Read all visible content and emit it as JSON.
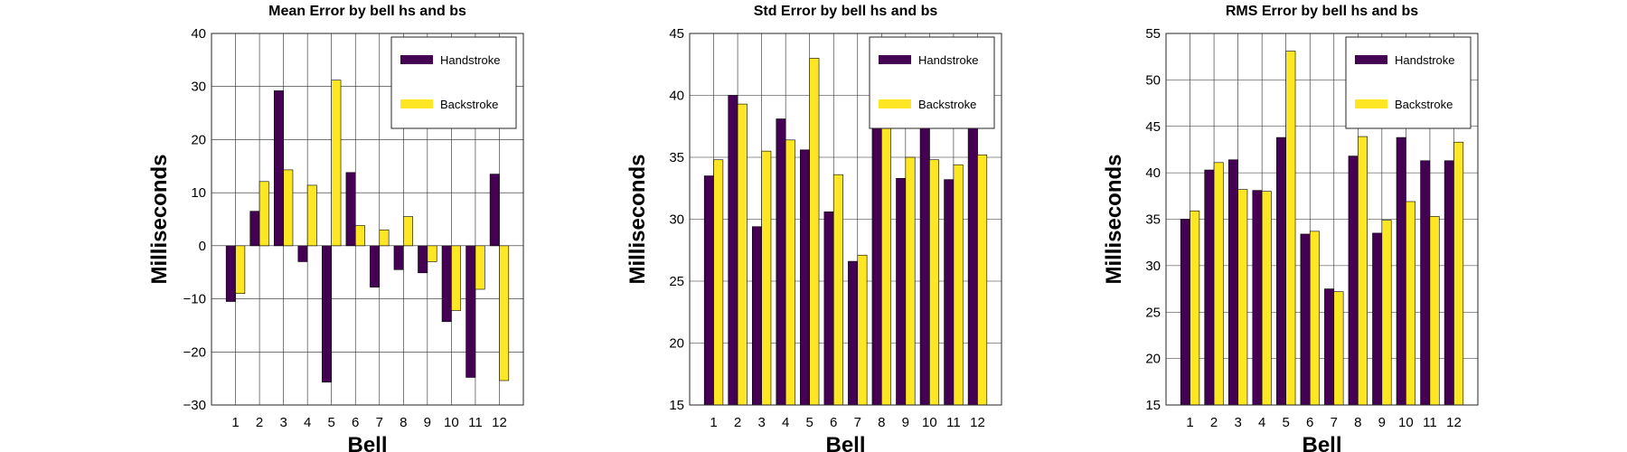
{
  "chart_data": [
    {
      "type": "bar",
      "title": "Mean Error by bell hs and bs",
      "xlabel": "Bell",
      "ylabel": "Milliseconds",
      "categories": [
        "1",
        "2",
        "3",
        "4",
        "5",
        "6",
        "7",
        "8",
        "9",
        "10",
        "11",
        "12"
      ],
      "ylim": [
        -30,
        40
      ],
      "yticks": [
        -30,
        -20,
        -10,
        0,
        10,
        20,
        30,
        40
      ],
      "ytick_labels": [
        "−30",
        "−20",
        "−10",
        "0",
        "10",
        "20",
        "30",
        "40"
      ],
      "grid": true,
      "legend_position": "top-right",
      "series": [
        {
          "name": "Handstroke",
          "color": "#440154",
          "values": [
            -10.5,
            6.5,
            29.2,
            -3.0,
            -25.7,
            13.8,
            -7.8,
            -4.5,
            -5.1,
            -14.3,
            -24.8,
            13.5
          ]
        },
        {
          "name": "Backstroke",
          "color": "#fde725",
          "values": [
            -9.0,
            12.1,
            14.3,
            11.4,
            31.2,
            3.8,
            3.0,
            5.5,
            -3.0,
            -12.2,
            -8.2,
            -25.4
          ]
        }
      ]
    },
    {
      "type": "bar",
      "title": "Std Error by bell hs and bs",
      "xlabel": "Bell",
      "ylabel": "Milliseconds",
      "categories": [
        "1",
        "2",
        "3",
        "4",
        "5",
        "6",
        "7",
        "8",
        "9",
        "10",
        "11",
        "12"
      ],
      "ylim": [
        15,
        45
      ],
      "yticks": [
        15,
        20,
        25,
        30,
        35,
        40,
        45
      ],
      "ytick_labels": [
        "15",
        "20",
        "25",
        "30",
        "35",
        "40",
        "45"
      ],
      "grid": true,
      "legend_position": "top-right",
      "series": [
        {
          "name": "Handstroke",
          "color": "#440154",
          "values": [
            33.5,
            40.0,
            29.4,
            38.1,
            35.6,
            30.6,
            26.6,
            41.7,
            33.3,
            41.6,
            33.2,
            39.2
          ]
        },
        {
          "name": "Backstroke",
          "color": "#fde725",
          "values": [
            34.8,
            39.3,
            35.5,
            36.4,
            43.0,
            33.6,
            27.1,
            43.7,
            35.0,
            34.8,
            34.4,
            35.2
          ]
        }
      ]
    },
    {
      "type": "bar",
      "title": "RMS Error by bell hs and bs",
      "xlabel": "Bell",
      "ylabel": "Milliseconds",
      "categories": [
        "1",
        "2",
        "3",
        "4",
        "5",
        "6",
        "7",
        "8",
        "9",
        "10",
        "11",
        "12"
      ],
      "ylim": [
        15,
        55
      ],
      "yticks": [
        15,
        20,
        25,
        30,
        35,
        40,
        45,
        50,
        55
      ],
      "ytick_labels": [
        "15",
        "20",
        "25",
        "30",
        "35",
        "40",
        "45",
        "50",
        "55"
      ],
      "grid": true,
      "legend_position": "top-right",
      "series": [
        {
          "name": "Handstroke",
          "color": "#440154",
          "values": [
            35.0,
            40.3,
            41.4,
            38.1,
            43.8,
            33.4,
            27.5,
            41.8,
            33.5,
            43.8,
            41.3,
            41.3
          ]
        },
        {
          "name": "Backstroke",
          "color": "#fde725",
          "values": [
            35.9,
            41.1,
            38.2,
            38.0,
            53.1,
            33.7,
            27.2,
            43.9,
            34.9,
            36.9,
            35.3,
            43.3
          ]
        }
      ]
    }
  ]
}
